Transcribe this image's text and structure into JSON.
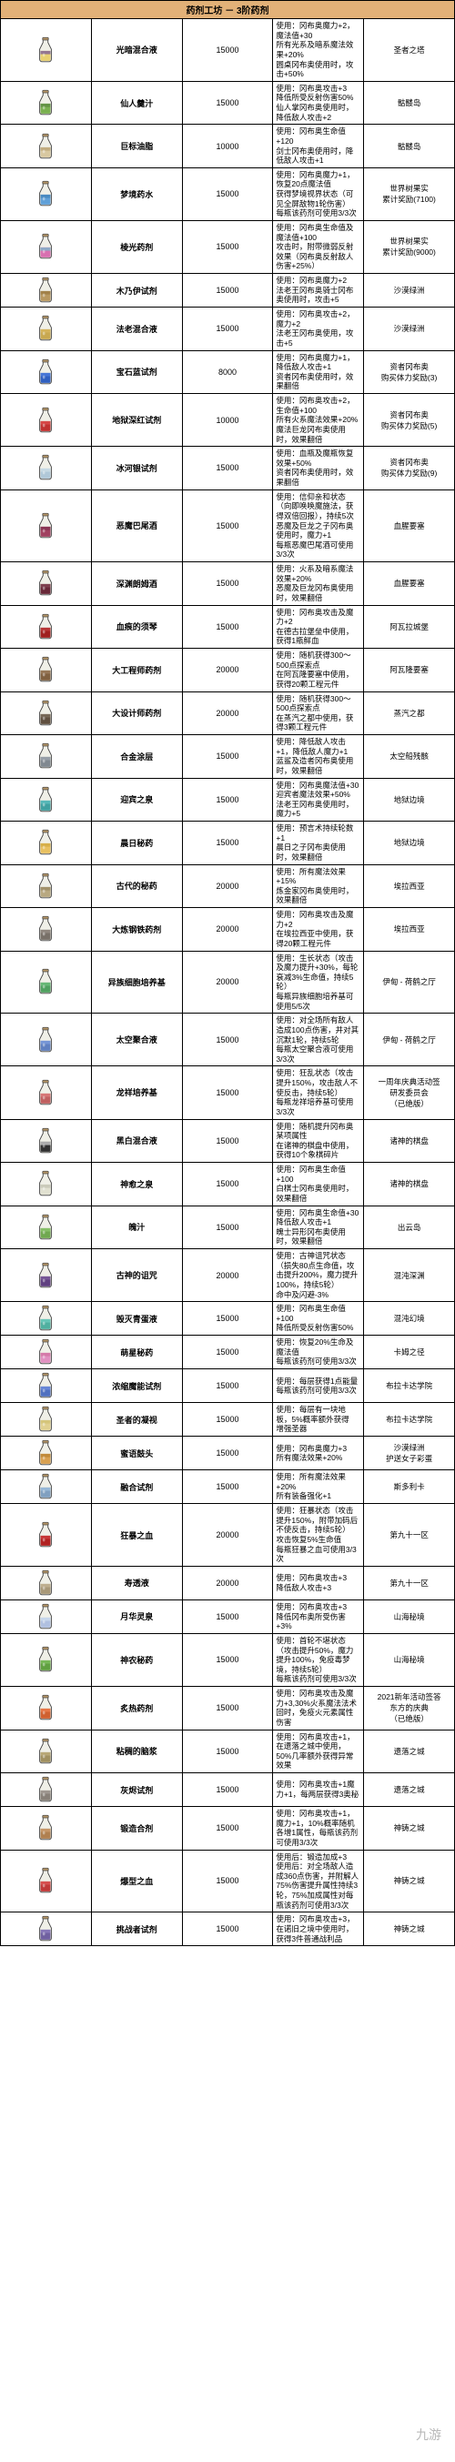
{
  "header": "药剂工坊 － 3阶药剂",
  "watermark": "九游",
  "rows": [
    {
      "name": "光暗混合液",
      "cost": 15000,
      "desc": "使用：冈布奥魔力+2，魔法值+30\n所有光系及暗系魔法效果+20%\n圆桌冈布奥使用时，攻击+50%",
      "loc": "圣者之塔",
      "c1": "#e8d070",
      "c2": "#7050a0"
    },
    {
      "name": "仙人羹汁",
      "cost": 15000,
      "desc": "使用：冈布奥攻击+3\n降低所受反射伤害50%\n仙人掌冈布奥使用时，降低敌人攻击+2",
      "loc": "骷髅岛",
      "c1": "#7ab050",
      "c2": "#5a8840"
    },
    {
      "name": "巨标油脂",
      "cost": 10000,
      "desc": "使用：冈布奥生命值+120\n剑士冈布奥使用时，降低敌人攻击+1",
      "loc": "骷髅岛",
      "c1": "#d8c8a0",
      "c2": "#b8a070"
    },
    {
      "name": "梦境药水",
      "cost": 15000,
      "desc": "使用：冈布奥魔力+1，恢复20点魔法值\n获得梦境视界状态（可见全屏敌物1轮伤害）\n每瓶该药剂可使用3/3次",
      "loc": "世界树果实\n累计奖励(7100)",
      "c1": "#60a0d8",
      "c2": "#4080b8"
    },
    {
      "name": "棱光药剂",
      "cost": 15000,
      "desc": "使用：冈布奥生命值及魔法值+100\n攻击时，附带微弱反射效果（冈布奥反射敌人伤害+25%）",
      "loc": "世界树果实\n累计奖励(9000)",
      "c1": "#d870b0",
      "c2": "#70c0d0"
    },
    {
      "name": "木乃伊试剂",
      "cost": 15000,
      "desc": "使用：冈布奥魔力+2\n法老王冈布奥骑士冈布奥使用时，攻击+5",
      "loc": "沙漠绿洲",
      "c1": "#b89860",
      "c2": "#987840"
    },
    {
      "name": "法老混合液",
      "cost": 15000,
      "desc": "使用：冈布奥攻击+2，魔力+2\n法老王冈布奥使用，攻击+5",
      "loc": "沙漠绿洲",
      "c1": "#c8a850",
      "c2": "#d8b860"
    },
    {
      "name": "宝石蓝试剂",
      "cost": 8000,
      "desc": "使用：冈布奥魔力+1，降低敌人攻击+1\n资者冈布奥使用时，效果翻倍",
      "loc": "资者冈布奥\n购买体力奖励(3)",
      "c1": "#3060c0",
      "c2": "#5080e0"
    },
    {
      "name": "地狱深红试剂",
      "cost": 10000,
      "desc": "使用：冈布奥攻击+2，生命值+100\n所有火系魔法效果+20%\n魔法巨龙冈布奥使用时，效果翻倍",
      "loc": "资者冈布奥\n购买体力奖励(5)",
      "c1": "#c03030",
      "c2": "#e05050"
    },
    {
      "name": "冰河银试剂",
      "cost": 15000,
      "desc": "使用：血瓶及魔瓶恢复效果+50%\n资者冈布奥使用时，效果翻倍",
      "loc": "资者冈布奥\n购买体力奖励(9)",
      "c1": "#b0c8d8",
      "c2": "#d0e0e8"
    },
    {
      "name": "恶魔巴尾酒",
      "cost": 15000,
      "desc": "使用：信仰亲和状态（向即唤唤魔施法，获得双倍回报），持续5次\n恶魔及巨龙之子冈布奥使用时，魔力+1\n每瓶恶魔巴尾酒可使用3/3次",
      "loc": "血腥要塞",
      "c1": "#a04060",
      "c2": "#803050"
    },
    {
      "name": "深渊朗姆酒",
      "cost": 15000,
      "desc": "使用：火系及暗系魔法效果+20%\n恶魔及巨龙冈布奥使用时，效果翻倍",
      "loc": "血腥要塞",
      "c1": "#682838",
      "c2": "#884858"
    },
    {
      "name": "血痕的须琴",
      "cost": 15000,
      "desc": "使用：冈布奥攻击及魔力+2\n在德古拉堡垒中使用，获得1瓶鲜血",
      "loc": "阿瓦拉城堡",
      "c1": "#a02020",
      "c2": "#c04040"
    },
    {
      "name": "大工程师药剂",
      "cost": 20000,
      "desc": "使用：随机获得300～500点探索点\n在阿瓦隆要塞中使用，获得20颗工程元件",
      "loc": "阿瓦隆要塞",
      "c1": "#806040",
      "c2": "#a08060"
    },
    {
      "name": "大设计师药剂",
      "cost": 20000,
      "desc": "使用：随机获得300～500点探索点\n在蒸汽之都中使用，获得3颗工程元件",
      "loc": "蒸汽之都",
      "c1": "#605040",
      "c2": "#807060"
    },
    {
      "name": "合金涂层",
      "cost": 15000,
      "desc": "使用：降低敌人攻击+1，降低敌人魔力+1\n蓝鲨及造者冈布奥使用时，效果翻倍",
      "loc": "太空船残骸",
      "c1": "#808890",
      "c2": "#a0a8b0"
    },
    {
      "name": "迎宾之泉",
      "cost": 15000,
      "desc": "使用：冈布奥魔法值+30\n迎宾者魔法效果+50%\n法老王冈布奥使用时，魔力+5",
      "loc": "地狱边境",
      "c1": "#40a0a0",
      "c2": "#60c0c0"
    },
    {
      "name": "晨日秘药",
      "cost": 15000,
      "desc": "使用：预言术持续轮数+1\n晨日之子冈布奥使用时，效果翻倍",
      "loc": "地狱边境",
      "c1": "#e8c060",
      "c2": "#d0a840"
    },
    {
      "name": "古代的秘药",
      "cost": 20000,
      "desc": "使用：所有魔法效果+15%\n炼金家冈布奥使用时，效果翻倍",
      "loc": "埃拉西亚",
      "c1": "#b8a880",
      "c2": "#988860"
    },
    {
      "name": "大炼钢铁药剂",
      "cost": 20000,
      "desc": "使用：冈布奥攻击及魔力+2\n在埃拉西亚中使用，获得20颗工程元件",
      "loc": "埃拉西亚",
      "c1": "#787068",
      "c2": "#989088"
    },
    {
      "name": "异族细胞培养基",
      "cost": 20000,
      "desc": "使用：生长状态（攻击及魔力提升+30%，每轮衰减3%生命值，持续5轮）\n每瓶异族细胞培养基可使用5/5次",
      "loc": "伊甸 - 荷鹤之厅",
      "c1": "#50a060",
      "c2": "#70c080"
    },
    {
      "name": "太空聚合液",
      "cost": 15000,
      "desc": "使用：对全场所有敌人造成100点伤害，并对其沉默1轮，持续5轮\n每瓶太空聚合液可使用3/3次",
      "loc": "伊甸 - 荷鹤之厅",
      "c1": "#6080c0",
      "c2": "#80a0e0"
    },
    {
      "name": "龙祥培养基",
      "cost": 15000,
      "desc": "使用：狂乱状态（攻击提升150%，攻击敌人不使反击，持续5轮）\n每瓶龙祥培养基可使用3/3次",
      "loc": "一周年庆典活动签\n研发委员会\n（已绝版）",
      "c1": "#c06060",
      "c2": "#e08080"
    },
    {
      "name": "黑白混合液",
      "cost": 15000,
      "desc": "使用：随机提升冈布奥某项属性\n在诸神的棋盘中使用，获得10个象棋碎片",
      "loc": "诸神的棋盘",
      "c1": "#303030",
      "c2": "#e0e0e0"
    },
    {
      "name": "神愈之泉",
      "cost": 15000,
      "desc": "使用：冈布奥生命值+100\n白棋士冈布奥使用时，效果翻倍",
      "loc": "诸神的棋盘",
      "c1": "#e0e0d0",
      "c2": "#c0c0b0"
    },
    {
      "name": "魄汁",
      "cost": 15000,
      "desc": "使用：冈布奥生命值+30\n降低敌人攻击+1\n魄士异形冈布奥使用时，效果翻倍",
      "loc": "出云岛",
      "c1": "#70a850",
      "c2": "#90c870"
    },
    {
      "name": "古神的诅咒",
      "cost": 20000,
      "desc": "使用：古神诅咒状态（损失80点生命值，攻击提升200%，魔力提升100%，持续5轮）\n命中及闪避-3%",
      "loc": "混沌深渊",
      "c1": "#604080",
      "c2": "#8060a0"
    },
    {
      "name": "毁灭青蛋液",
      "cost": 15000,
      "desc": "使用：冈布奥生命值+100\n降低所受反射伤害50%",
      "loc": "混沌幻境",
      "c1": "#50b0a0",
      "c2": "#70d0c0"
    },
    {
      "name": "萌星秘药",
      "cost": 15000,
      "desc": "使用：恢复20%生命及魔法值\n每瓶该药剂可使用3/3次",
      "loc": "卡姆之径",
      "c1": "#e090c0",
      "c2": "#d070a0"
    },
    {
      "name": "浓缩魔能试剂",
      "cost": 15000,
      "desc": "使用：每层获得1点能量\n每瓶该药剂可使用3/3次",
      "loc": "布拉卡达学院",
      "c1": "#5070c0",
      "c2": "#7090e0"
    },
    {
      "name": "圣者的凝视",
      "cost": 15000,
      "desc": "使用：每层有一块地板，5%概率额外获得\n增强圣器",
      "loc": "布拉卡达学院",
      "c1": "#e0d090",
      "c2": "#d0c070"
    },
    {
      "name": "蜜语鼓头",
      "cost": 15000,
      "desc": "使用：冈布奥魔力+3\n所有魔法效果+20%",
      "loc": "沙漠绿洲\n护送女子彩蛋",
      "c1": "#d8a050",
      "c2": "#b88030"
    },
    {
      "name": "融合试剂",
      "cost": 15000,
      "desc": "使用：所有魔法效果+20%\n所有装备强化+1",
      "loc": "斯多利卡",
      "c1": "#80a0c0",
      "c2": "#a0c0e0"
    },
    {
      "name": "狂暴之血",
      "cost": 20000,
      "desc": "使用：狂暴状态（攻击提升150%，附带加码后不使反击，持续5轮）\n攻击恢复5%生命值\n每瓶狂暴之血可使用3/3次",
      "loc": "第九十一区",
      "c1": "#b02020",
      "c2": "#d04040"
    },
    {
      "name": "寿透液",
      "cost": 20000,
      "desc": "使用：冈布奥攻击+3\n降低敌人攻击+3",
      "loc": "第九十一区",
      "c1": "#a89878",
      "c2": "#c8b898"
    },
    {
      "name": "月华灵泉",
      "cost": 15000,
      "desc": "使用：冈布奥攻击+3\n降低冈布奥所受伤害+3%",
      "loc": "山海秘境",
      "c1": "#b0c0e0",
      "c2": "#d0e0f0"
    },
    {
      "name": "神农秘药",
      "cost": 15000,
      "desc": "使用：首轮不堪状态（攻击提升50%，魔力提升100%，免疫毒梦境，持续5轮）\n每瓶该药剂可使用3/3次",
      "loc": "山海秘境",
      "c1": "#60a040",
      "c2": "#80c060"
    },
    {
      "name": "炙热药剂",
      "cost": 15000,
      "desc": "使用：冈布奥攻击及魔力+3,30%火系魔法法术回时，免疫火元素属性伤害",
      "loc": "2021新年活动签答\n东方的庆典\n（已绝版）",
      "c1": "#d06030",
      "c2": "#f08050"
    },
    {
      "name": "粘稠的脑浆",
      "cost": 15000,
      "desc": "使用：冈布奥攻击+1，在遗落之城中使用，50%几率额外获得异常效果",
      "loc": "遗落之城",
      "c1": "#a09060",
      "c2": "#c0b080"
    },
    {
      "name": "灰烬试剂",
      "cost": 15000,
      "desc": "使用：冈布奥攻击+1魔力+1，每两层获得3奥秘",
      "loc": "遗落之城",
      "c1": "#888078",
      "c2": "#a8a098"
    },
    {
      "name": "锻造合剂",
      "cost": 15000,
      "desc": "使用：冈布奥攻击+1，魔力+1，10%概率随机各增1属性，每瓶该药剂可使用3/3次",
      "loc": "神铸之城",
      "c1": "#b08050",
      "c2": "#d0a070"
    },
    {
      "name": "爆型之血",
      "cost": 15000,
      "desc": "使用后：锻造加成+3\n使用后：对全场敌人造成360点伤害，并附解人75%伤害提升属性持续3轮，75%加成属性对每瓶该药剂可使用3/3次",
      "loc": "神铸之城",
      "c1": "#c03838",
      "c2": "#e05858"
    },
    {
      "name": "挑战者试剂",
      "cost": 15000,
      "desc": "使用：冈布奥攻击+3，在诺旧之境中使用时，获得3件普通战利品",
      "loc": "神铸之城",
      "c1": "#7060a0",
      "c2": "#9080c0"
    }
  ]
}
